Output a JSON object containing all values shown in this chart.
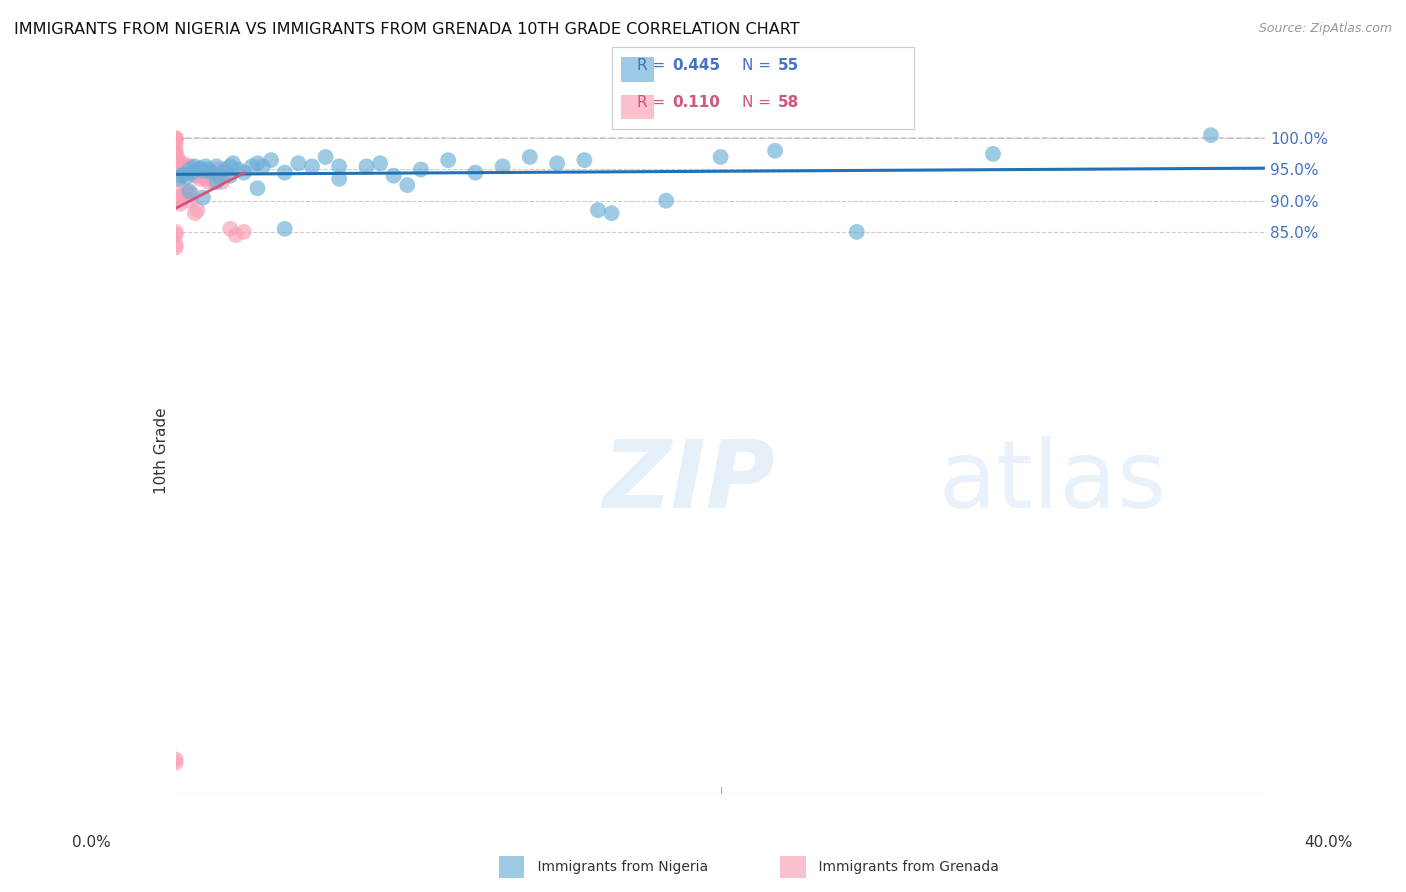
{
  "title": "IMMIGRANTS FROM NIGERIA VS IMMIGRANTS FROM GRENADA 10TH GRADE CORRELATION CHART",
  "source": "Source: ZipAtlas.com",
  "ylabel": "10th Grade",
  "nigeria_R": 0.445,
  "nigeria_N": 55,
  "grenada_R": 0.11,
  "grenada_N": 58,
  "nigeria_color": "#6baed6",
  "grenada_color": "#fa9fb5",
  "nigeria_line_color": "#2171b5",
  "grenada_line_color": "#d4547a",
  "ref_line_color": "#ccbbbb",
  "xlim_pct": [
    0.0,
    40.0
  ],
  "ylim_pct": [
    -5.0,
    105.0
  ],
  "right_yticks": [
    85.0,
    90.0,
    95.0,
    100.0
  ],
  "right_yticklabels": [
    "85.0%",
    "90.0%",
    "95.0%",
    "100.0%"
  ],
  "right_ytick_yvals": [
    85.0,
    90.0,
    95.0,
    100.0
  ],
  "background_color": "#ffffff",
  "grid_color": "#cccccc",
  "nigeria_scatter_x": [
    0.1,
    0.2,
    0.3,
    0.4,
    0.5,
    0.6,
    0.7,
    0.8,
    0.9,
    1.0,
    1.1,
    1.2,
    1.3,
    1.5,
    1.6,
    1.8,
    2.0,
    2.1,
    2.3,
    2.5,
    2.8,
    3.0,
    3.2,
    3.5,
    4.0,
    4.5,
    5.0,
    5.5,
    6.0,
    7.0,
    7.5,
    8.0,
    8.5,
    9.0,
    10.0,
    11.0,
    12.0,
    13.0,
    14.0,
    15.0,
    15.5,
    16.0,
    18.0,
    20.0,
    22.0,
    25.0,
    30.0,
    38.0,
    0.5,
    1.0,
    1.5,
    2.0,
    3.0,
    4.0,
    6.0
  ],
  "nigeria_scatter_y": [
    93.5,
    94.0,
    94.2,
    93.8,
    95.0,
    94.5,
    95.5,
    95.0,
    95.2,
    94.8,
    95.5,
    95.0,
    94.5,
    95.5,
    94.0,
    95.0,
    95.5,
    96.0,
    95.0,
    94.5,
    95.5,
    96.0,
    95.5,
    96.5,
    94.5,
    96.0,
    95.5,
    97.0,
    95.5,
    95.5,
    96.0,
    94.0,
    92.5,
    95.0,
    96.5,
    94.5,
    95.5,
    97.0,
    96.0,
    96.5,
    88.5,
    88.0,
    90.0,
    97.0,
    98.0,
    85.0,
    97.5,
    100.5,
    91.5,
    90.5,
    93.0,
    94.0,
    92.0,
    85.5,
    93.5
  ],
  "grenada_scatter_x": [
    0.0,
    0.0,
    0.0,
    0.0,
    0.0,
    0.0,
    0.0,
    0.0,
    0.05,
    0.05,
    0.1,
    0.1,
    0.15,
    0.15,
    0.2,
    0.2,
    0.25,
    0.25,
    0.3,
    0.3,
    0.35,
    0.4,
    0.45,
    0.5,
    0.55,
    0.6,
    0.6,
    0.7,
    0.8,
    0.9,
    1.0,
    1.1,
    1.2,
    1.3,
    1.4,
    1.5,
    1.6,
    1.7,
    1.8,
    2.0,
    2.2,
    2.5,
    0.05,
    0.1,
    0.15,
    0.2,
    0.3,
    0.4,
    0.5,
    0.6,
    0.7,
    0.8,
    0.0,
    0.0,
    0.0,
    0.0,
    0.0,
    0.0
  ],
  "grenada_scatter_y": [
    100.0,
    100.0,
    99.5,
    99.0,
    98.0,
    97.5,
    97.0,
    96.5,
    97.0,
    96.5,
    96.0,
    95.5,
    96.0,
    95.5,
    95.5,
    95.0,
    96.0,
    95.5,
    95.5,
    95.0,
    95.0,
    95.0,
    95.5,
    95.0,
    95.5,
    95.0,
    94.5,
    94.0,
    94.0,
    93.5,
    94.0,
    93.5,
    93.0,
    94.5,
    93.0,
    95.0,
    93.5,
    93.0,
    94.5,
    85.5,
    84.5,
    85.0,
    90.0,
    90.5,
    89.5,
    92.0,
    91.0,
    91.5,
    90.0,
    91.0,
    88.0,
    88.5,
    85.0,
    84.5,
    83.0,
    82.5,
    0.5,
    0.0
  ]
}
